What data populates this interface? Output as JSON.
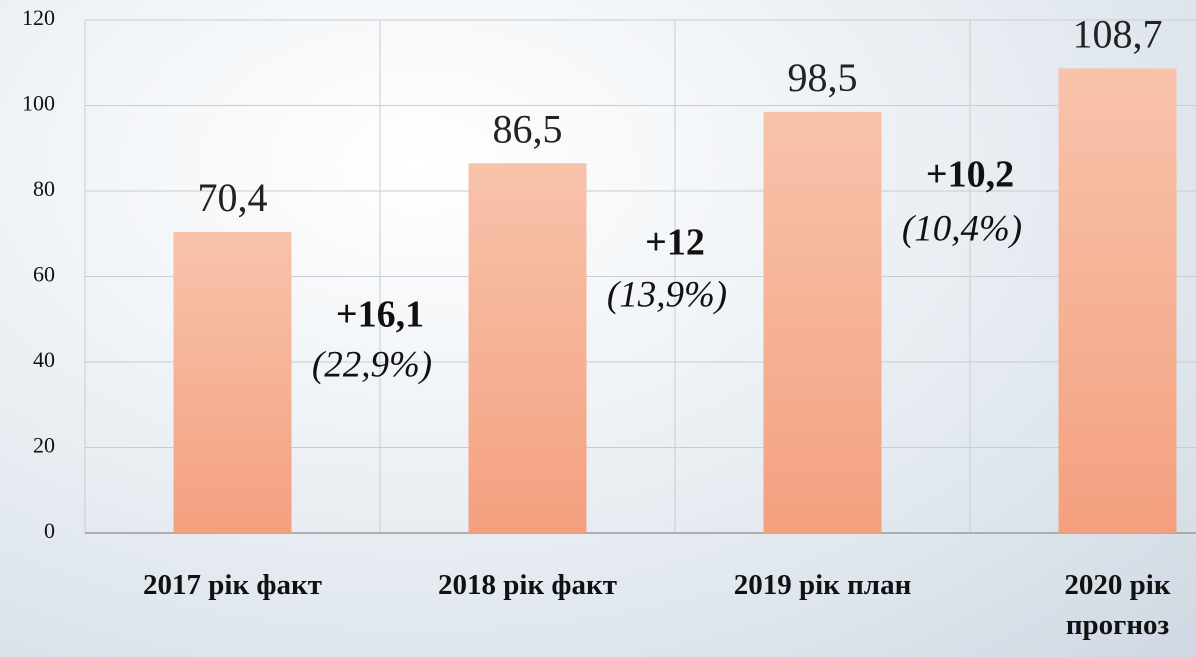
{
  "chart_data": {
    "type": "bar",
    "categories": [
      "2017 рік факт",
      "2018 рік факт",
      "2019 рік план",
      "2020 рік прогноз"
    ],
    "values": [
      70.4,
      86.5,
      98.5,
      108.7
    ],
    "value_labels": [
      "70,4",
      "86,5",
      "98,5",
      "108,7"
    ],
    "ylim": [
      0,
      120
    ],
    "yticks": [
      0,
      20,
      40,
      60,
      80,
      100,
      120
    ],
    "grid": true,
    "annotations": [
      {
        "change": "+16,1",
        "percent": "(22,9%)"
      },
      {
        "change": "+12",
        "percent": "(13,9%)"
      },
      {
        "change": "+10,2",
        "percent": "(10,4%)"
      }
    ]
  }
}
